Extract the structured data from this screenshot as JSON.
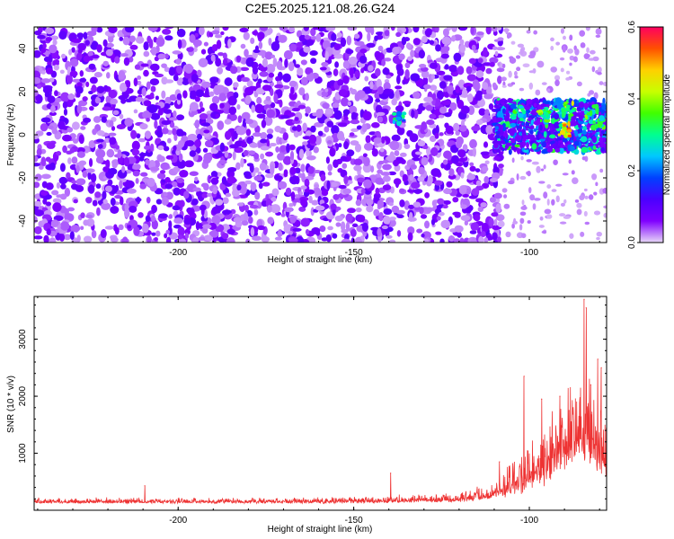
{
  "title": "C2E5.2025.121.08.26.G24",
  "chart_data": [
    {
      "type": "heatmap",
      "description_axes": "spectrogram",
      "xlabel": "Height of straight line (km)",
      "ylabel": "Frequency (Hz)",
      "xlim": [
        -241,
        -78
      ],
      "ylim": [
        -50,
        50
      ],
      "xticks": [
        -200,
        -150,
        -100
      ],
      "yticks": [
        -40,
        -20,
        0,
        20,
        40
      ],
      "colorbar": {
        "label": "Normalized spectral amplitude",
        "range": [
          0.0,
          0.6
        ],
        "ticks": [
          0.0,
          0.2,
          0.4,
          0.6
        ],
        "colormap": [
          "#e8d8f8",
          "#8000ff",
          "#4b00ff",
          "#0040ff",
          "#00c8ff",
          "#00ff90",
          "#40ff00",
          "#c8ff00",
          "#ffd000",
          "#ff5000",
          "#ff0060"
        ]
      },
      "noise_region": {
        "x_from": -241,
        "x_to": -110,
        "freq_band": [
          -50,
          50
        ],
        "level": 0.05
      },
      "signal_region": {
        "x_from": -110,
        "x_to": -78,
        "freq_band": [
          -8,
          16
        ],
        "level": 0.3
      },
      "hotspots": [
        {
          "x": -137,
          "freq": 8,
          "value": 0.3
        },
        {
          "x": -103,
          "freq": 10,
          "value": 0.35
        },
        {
          "x": -96,
          "freq": 9,
          "value": 0.4
        },
        {
          "x": -89,
          "freq": 12,
          "value": 0.45
        },
        {
          "x": -90,
          "freq": 2,
          "value": 0.5
        },
        {
          "x": -83,
          "freq": 8,
          "value": 0.4
        },
        {
          "x": -80,
          "freq": 5,
          "value": 0.35
        }
      ]
    },
    {
      "type": "line",
      "xlabel": "Height of straight line (km)",
      "ylabel": "SNR (10 * v/v)",
      "xlim": [
        -241,
        -78
      ],
      "ylim": [
        0,
        3750
      ],
      "xticks": [
        -200,
        -150,
        -100
      ],
      "yticks": [
        1000,
        2000,
        3000
      ],
      "color": "#ee3333",
      "envelope": {
        "x": [
          -241,
          -200,
          -160,
          -140,
          -120,
          -112,
          -108,
          -104,
          -100,
          -96,
          -92,
          -90,
          -88,
          -86,
          -84,
          -82,
          -80,
          -78
        ],
        "baseline": [
          130,
          130,
          130,
          140,
          160,
          200,
          260,
          330,
          420,
          550,
          700,
          800,
          900,
          1000,
          1000,
          900,
          800,
          700
        ],
        "amplitude": [
          90,
          100,
          110,
          130,
          160,
          250,
          450,
          650,
          900,
          1200,
          1300,
          1500,
          1600,
          1800,
          1700,
          1500,
          1300,
          1100
        ]
      },
      "peaks": [
        {
          "x": -84.4,
          "y": 3700
        },
        {
          "x": -83.8,
          "y": 3550
        },
        {
          "x": -80.5,
          "y": 2650
        },
        {
          "x": -79.5,
          "y": 2500
        },
        {
          "x": -82.5,
          "y": 2200
        },
        {
          "x": -101.5,
          "y": 2350
        },
        {
          "x": -96.5,
          "y": 1950
        },
        {
          "x": -91.3,
          "y": 2000
        },
        {
          "x": -88.7,
          "y": 1750
        },
        {
          "x": -108.5,
          "y": 850
        },
        {
          "x": -139.5,
          "y": 650
        },
        {
          "x": -209.5,
          "y": 430
        }
      ]
    }
  ]
}
